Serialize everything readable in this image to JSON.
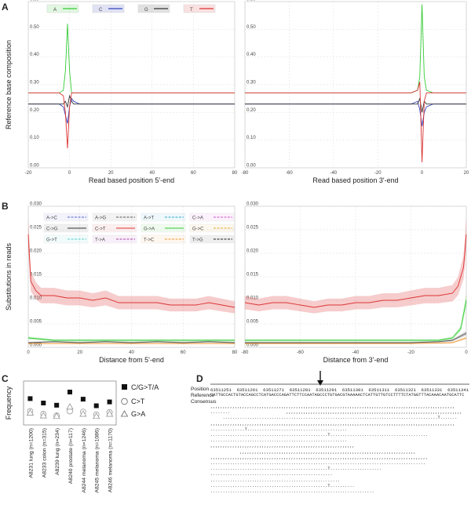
{
  "panels": {
    "A": "A",
    "B": "B",
    "C": "C",
    "D": "D"
  },
  "chart_data": [
    {
      "id": "A-left",
      "type": "line",
      "legend": [
        "A",
        "C",
        "G",
        "T"
      ],
      "colors": {
        "A": "#33cc33",
        "C": "#3344bb",
        "G": "#333333",
        "T": "#dd3333"
      },
      "xlabel": "Read based position 5'-end",
      "ylabel": "Reference base composition",
      "xlim": [
        -20,
        80
      ],
      "ylim": [
        0,
        0.6
      ],
      "xticks": [
        "-20",
        "0",
        "20",
        "40",
        "60",
        "80"
      ],
      "yticks": [
        "0.00",
        "0.10",
        "0.20",
        "0.30",
        "0.40",
        "0.50",
        "0.60"
      ],
      "series": [
        {
          "name": "A",
          "x": [
            -20,
            -5,
            -3,
            -2,
            -1,
            0,
            1,
            2,
            5,
            20,
            40,
            60,
            80
          ],
          "values": [
            0.27,
            0.27,
            0.28,
            0.35,
            0.52,
            0.35,
            0.27,
            0.27,
            0.27,
            0.27,
            0.27,
            0.27,
            0.27
          ]
        },
        {
          "name": "C",
          "x": [
            -20,
            -5,
            -3,
            -2,
            -1,
            0,
            1,
            2,
            5,
            20,
            40,
            60,
            80
          ],
          "values": [
            0.23,
            0.23,
            0.22,
            0.19,
            0.16,
            0.22,
            0.25,
            0.24,
            0.23,
            0.23,
            0.23,
            0.23,
            0.23
          ]
        },
        {
          "name": "G",
          "x": [
            -20,
            -5,
            -3,
            -2,
            -1,
            0,
            1,
            2,
            5,
            20,
            40,
            60,
            80
          ],
          "values": [
            0.23,
            0.23,
            0.23,
            0.24,
            0.22,
            0.26,
            0.24,
            0.23,
            0.23,
            0.23,
            0.23,
            0.23,
            0.23
          ]
        },
        {
          "name": "T",
          "x": [
            -20,
            -5,
            -3,
            -2,
            -1,
            0,
            1,
            2,
            5,
            20,
            40,
            60,
            80
          ],
          "values": [
            0.27,
            0.27,
            0.26,
            0.2,
            0.07,
            0.22,
            0.27,
            0.27,
            0.27,
            0.27,
            0.27,
            0.27,
            0.27
          ]
        }
      ]
    },
    {
      "id": "A-right",
      "type": "line",
      "xlabel": "Read based position 3'-end",
      "xlim": [
        -80,
        20
      ],
      "ylim": [
        0,
        0.6
      ],
      "xticks": [
        "-80",
        "-60",
        "-40",
        "-20",
        "0",
        "20"
      ],
      "yticks": [
        "0.00",
        "0.10",
        "0.20",
        "0.30",
        "0.40",
        "0.50",
        "0.60"
      ],
      "series": [
        {
          "name": "A",
          "x": [
            -80,
            -60,
            -40,
            -20,
            -5,
            -2,
            -1,
            0,
            1,
            2,
            5,
            20
          ],
          "values": [
            0.27,
            0.27,
            0.27,
            0.27,
            0.27,
            0.28,
            0.33,
            0.59,
            0.33,
            0.28,
            0.27,
            0.27
          ]
        },
        {
          "name": "C",
          "x": [
            -80,
            -60,
            -40,
            -20,
            -5,
            -2,
            -1,
            0,
            1,
            2,
            5,
            20
          ],
          "values": [
            0.23,
            0.23,
            0.23,
            0.23,
            0.23,
            0.24,
            0.21,
            0.15,
            0.2,
            0.22,
            0.23,
            0.23
          ]
        },
        {
          "name": "G",
          "x": [
            -80,
            -60,
            -40,
            -20,
            -5,
            -2,
            -1,
            0,
            1,
            2,
            5,
            20
          ],
          "values": [
            0.23,
            0.23,
            0.23,
            0.23,
            0.23,
            0.23,
            0.25,
            0.2,
            0.24,
            0.23,
            0.23,
            0.23
          ]
        },
        {
          "name": "T",
          "x": [
            -80,
            -60,
            -40,
            -20,
            -5,
            -2,
            -1,
            0,
            1,
            2,
            5,
            20
          ],
          "values": [
            0.27,
            0.27,
            0.27,
            0.27,
            0.27,
            0.28,
            0.31,
            0.02,
            0.24,
            0.27,
            0.27,
            0.27
          ]
        }
      ]
    },
    {
      "id": "B-left",
      "type": "line",
      "legend": [
        "A->C",
        "A->G",
        "A->T",
        "C->A",
        "C->G",
        "C->T",
        "G->A",
        "G->C",
        "G->T",
        "T->A",
        "T->C",
        "T->G"
      ],
      "xlabel": "Distance from 5'-end",
      "ylabel": "Substitutions in reads",
      "xlim": [
        0,
        80
      ],
      "ylim": [
        0,
        0.03
      ],
      "xticks": [
        "0",
        "20",
        "40",
        "60",
        "80"
      ],
      "yticks": [
        "0.000",
        "0.005",
        "0.010",
        "0.015",
        "0.020",
        "0.025",
        "0.030"
      ],
      "series": [
        {
          "name": "C->T",
          "x": [
            0,
            1,
            3,
            5,
            10,
            15,
            20,
            25,
            30,
            35,
            40,
            45,
            50,
            55,
            60,
            65,
            70,
            75,
            80
          ],
          "values": [
            0.024,
            0.014,
            0.012,
            0.011,
            0.011,
            0.0105,
            0.0105,
            0.01,
            0.0105,
            0.0095,
            0.0095,
            0.0095,
            0.0095,
            0.009,
            0.009,
            0.009,
            0.0095,
            0.009,
            0.0085
          ]
        },
        {
          "name": "G->A",
          "x": [
            0,
            10,
            20,
            30,
            40,
            50,
            60,
            70,
            80
          ],
          "values": [
            0.002,
            0.0015,
            0.0015,
            0.0015,
            0.0015,
            0.0015,
            0.0015,
            0.0015,
            0.0015
          ]
        },
        {
          "name": "A->G",
          "x": [
            0,
            10,
            20,
            30,
            40,
            50,
            60,
            70,
            80
          ],
          "values": [
            0.001,
            0.0012,
            0.001,
            0.0012,
            0.001,
            0.0012,
            0.001,
            0.0012,
            0.001
          ]
        },
        {
          "name": "T->C",
          "x": [
            0,
            10,
            20,
            30,
            40,
            50,
            60,
            70,
            80
          ],
          "values": [
            0.0008,
            0.0008,
            0.0008,
            0.0008,
            0.0008,
            0.0008,
            0.0008,
            0.0008,
            0.0008
          ]
        }
      ]
    },
    {
      "id": "B-right",
      "type": "line",
      "xlabel": "Distance from 3'-end",
      "xlim": [
        -80,
        0
      ],
      "ylim": [
        0,
        0.03
      ],
      "xticks": [
        "-80",
        "-60",
        "-40",
        "-20",
        "0"
      ],
      "yticks": [
        "0.000",
        "0.005",
        "0.010",
        "0.015",
        "0.020",
        "0.025",
        "0.030"
      ],
      "series": [
        {
          "name": "C->T",
          "x": [
            -80,
            -75,
            -70,
            -65,
            -60,
            -55,
            -50,
            -45,
            -40,
            -35,
            -30,
            -25,
            -20,
            -15,
            -10,
            -5,
            -3,
            -1,
            0
          ],
          "values": [
            0.0095,
            0.009,
            0.0095,
            0.0095,
            0.009,
            0.0085,
            0.009,
            0.009,
            0.0095,
            0.0095,
            0.01,
            0.01,
            0.0105,
            0.011,
            0.011,
            0.0115,
            0.013,
            0.017,
            0.024
          ]
        },
        {
          "name": "G->A",
          "x": [
            -80,
            -60,
            -40,
            -20,
            -10,
            -5,
            -2,
            0
          ],
          "values": [
            0.0015,
            0.0015,
            0.0015,
            0.0015,
            0.0015,
            0.002,
            0.004,
            0.01
          ]
        },
        {
          "name": "A->G",
          "x": [
            -80,
            -60,
            -40,
            -20,
            -10,
            -5,
            0
          ],
          "values": [
            0.001,
            0.001,
            0.001,
            0.001,
            0.0012,
            0.0015,
            0.003
          ]
        },
        {
          "name": "T->C",
          "x": [
            -80,
            -60,
            -40,
            -20,
            -10,
            -5,
            0
          ],
          "values": [
            0.0008,
            0.0008,
            0.0008,
            0.0008,
            0.0009,
            0.001,
            0.002
          ]
        }
      ]
    },
    {
      "id": "C",
      "type": "scatter",
      "ylabel": "Frequency",
      "categories": [
        "A8231 lung (n=1200)",
        "A8233 colon (n=315)",
        "A8239 lung (n=234)",
        "A8240 prostate (n=117)",
        "A8244 melanoma (n=1246)",
        "A8245 melanoma (n=1086)",
        "A8246 melanoma (n=1170)"
      ],
      "series": [
        {
          "name": "C/G>T/A",
          "values": [
            48,
            40,
            36,
            60,
            47,
            35,
            42
          ]
        },
        {
          "name": "C>T",
          "values": [
            25,
            20,
            17,
            25,
            24,
            19,
            23
          ]
        },
        {
          "name": "G>A",
          "values": [
            22,
            17,
            16,
            33,
            20,
            16,
            20
          ]
        }
      ]
    }
  ],
  "panelD": {
    "position_label": "Position",
    "reference_label": "Reference",
    "consensus_label": "Consensus",
    "positions": "63511251  63511261  63511271  63511281  63511291  63511301  63511311  63511321  63511331  63511341",
    "reference_seq": "CATTGCCACTGTACCAGCCTCATGACCCAGATTCTTCCAATAGCCCTGTGACGTAAAAACTCATTGTTGTCCTTTTCTATGGTTTACAAACAATGCATTC",
    "reads": [
      ",,,,,,,,,,,,,,,,,,,,,,,,,,,,,,,,,,,,,,,,,,,,,,,,,,,,,,,,,,,,,,,,,,,,,,,,,,,,,,,,,,,,,,,,,,,,,,,,,,,,",
      "........                       ,,,,,,,,,,,,,,,,,,,,,,,,,,,,,,,,,,,,,,,,,,,,,,,,,,,,,,,,,,,,,,,,,,,,,,,,",
      "     ........................................................................................T.......",
      ",,,,,,,,,,,,,,,,,,,,,,,,,,,,,,,,,,,,,,,,,,,,,,,,,,,,,,,,,,,,,,,,,,,,,,,,,,,,,,,,,,,,,,,,,,,,,,,,,,,,",
      "..............T.........................................",
      "................................................T........................................",
      "........................................................",
      ",,,,,,,,,,,,,,,,,,,,,,,,,,,,,,,,,,,,,,,,,,,,,,,,,,,,,,,,,,,",
      "            ,,,,,,,,,,,,,,,,,,,,,,,,,,,,,,,,,,,,,,,,,,,,,,,,,,,,,,,,,,,,,,,,,,,,,,,,",
      ",,,,,,,,,,,,,,,,,,,,,,,,,,,,,,,,,,,,,,,,,,,,,,,,,,,,,,,,,,,,,,,,,,,,,,,,,,,,,,,,,,,,,,,,,",
      "........................................................................................",
      "................................................T.....................",
      "..................................................",
      ".....................................................",
      "................................................T..........",
      "..................................................................."
    ]
  }
}
